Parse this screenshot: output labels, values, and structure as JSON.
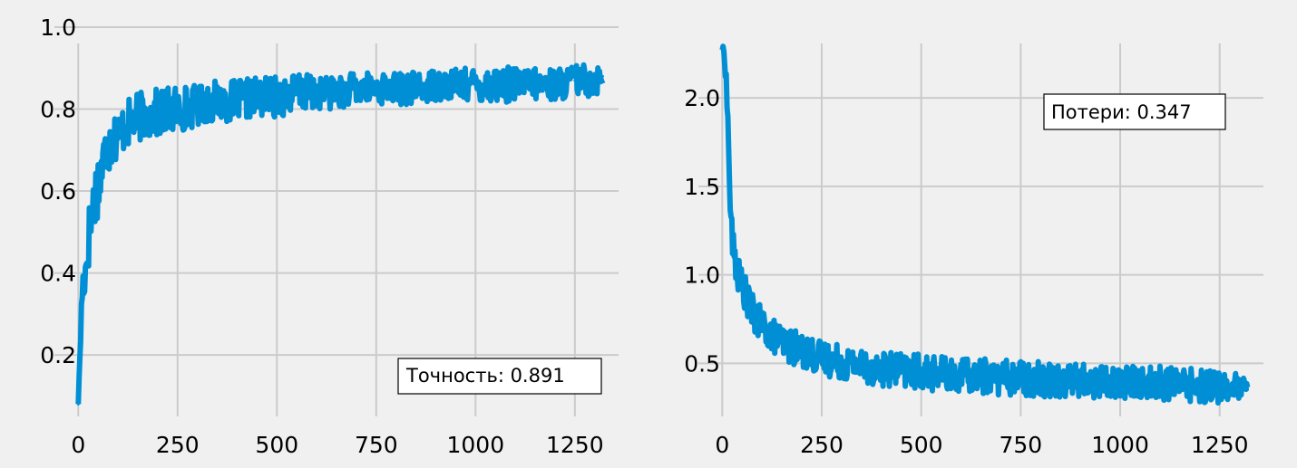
{
  "chart_data": [
    {
      "type": "line",
      "title": "",
      "xlabel": "",
      "ylabel": "",
      "xlim": [
        -60,
        1360
      ],
      "ylim": [
        0.05,
        1.0
      ],
      "xticks": [
        "0",
        "250",
        "500",
        "750",
        "1000",
        "1250"
      ],
      "yticks": [
        "0.2",
        "0.4",
        "0.6",
        "0.8",
        "1.0"
      ],
      "grid": true,
      "color": "#008fd5",
      "annotation": "Точность: 0.891",
      "annotation_position": "bottom-right",
      "series": [
        {
          "x": [
            0,
            10,
            20,
            30,
            40,
            50,
            60,
            70,
            80,
            100,
            120,
            150,
            200,
            250,
            300,
            350,
            400,
            450,
            500,
            550,
            600,
            650,
            700,
            750,
            800,
            850,
            900,
            950,
            1000,
            1050,
            1100,
            1150,
            1200,
            1250,
            1300,
            1320
          ],
          "values": [
            0.08,
            0.36,
            0.42,
            0.52,
            0.58,
            0.62,
            0.66,
            0.7,
            0.72,
            0.74,
            0.76,
            0.78,
            0.79,
            0.8,
            0.81,
            0.82,
            0.82,
            0.83,
            0.83,
            0.84,
            0.84,
            0.84,
            0.85,
            0.85,
            0.85,
            0.85,
            0.86,
            0.86,
            0.86,
            0.86,
            0.86,
            0.86,
            0.86,
            0.87,
            0.87,
            0.88
          ],
          "spread": [
            0.0,
            0.06,
            0.06,
            0.08,
            0.08,
            0.08,
            0.08,
            0.07,
            0.07,
            0.06,
            0.06,
            0.06,
            0.06,
            0.06,
            0.05,
            0.05,
            0.05,
            0.05,
            0.05,
            0.05,
            0.04,
            0.04,
            0.04,
            0.04,
            0.04,
            0.04,
            0.04,
            0.04,
            0.04,
            0.05,
            0.04,
            0.04,
            0.04,
            0.04,
            0.04,
            0.03
          ]
        }
      ]
    },
    {
      "type": "line",
      "title": "",
      "xlabel": "",
      "ylabel": "",
      "xlim": [
        -60,
        1360
      ],
      "ylim": [
        0.2,
        2.4
      ],
      "xticks": [
        "0",
        "250",
        "500",
        "750",
        "1000",
        "1250"
      ],
      "yticks": [
        "0.5",
        "1.0",
        "1.5",
        "2.0"
      ],
      "grid": true,
      "color": "#008fd5",
      "annotation": "Потери: 0.347",
      "annotation_position": "top-right",
      "series": [
        {
          "x": [
            0,
            5,
            10,
            15,
            20,
            25,
            30,
            40,
            50,
            60,
            70,
            80,
            100,
            120,
            150,
            200,
            250,
            300,
            350,
            400,
            450,
            500,
            550,
            600,
            650,
            700,
            750,
            800,
            850,
            900,
            950,
            1000,
            1050,
            1100,
            1150,
            1200,
            1250,
            1300,
            1320
          ],
          "values": [
            2.28,
            2.25,
            2.1,
            1.8,
            1.4,
            1.2,
            1.1,
            1.0,
            0.95,
            0.88,
            0.82,
            0.77,
            0.72,
            0.67,
            0.62,
            0.57,
            0.53,
            0.51,
            0.49,
            0.47,
            0.46,
            0.45,
            0.44,
            0.43,
            0.43,
            0.42,
            0.42,
            0.41,
            0.41,
            0.4,
            0.4,
            0.39,
            0.39,
            0.39,
            0.38,
            0.38,
            0.37,
            0.36,
            0.35
          ],
          "spread": [
            0.02,
            0.03,
            0.05,
            0.08,
            0.1,
            0.1,
            0.1,
            0.1,
            0.1,
            0.1,
            0.1,
            0.1,
            0.1,
            0.1,
            0.1,
            0.1,
            0.1,
            0.1,
            0.1,
            0.1,
            0.1,
            0.1,
            0.1,
            0.1,
            0.1,
            0.1,
            0.1,
            0.1,
            0.1,
            0.1,
            0.1,
            0.1,
            0.1,
            0.1,
            0.1,
            0.1,
            0.1,
            0.08,
            0.06
          ]
        }
      ]
    }
  ]
}
